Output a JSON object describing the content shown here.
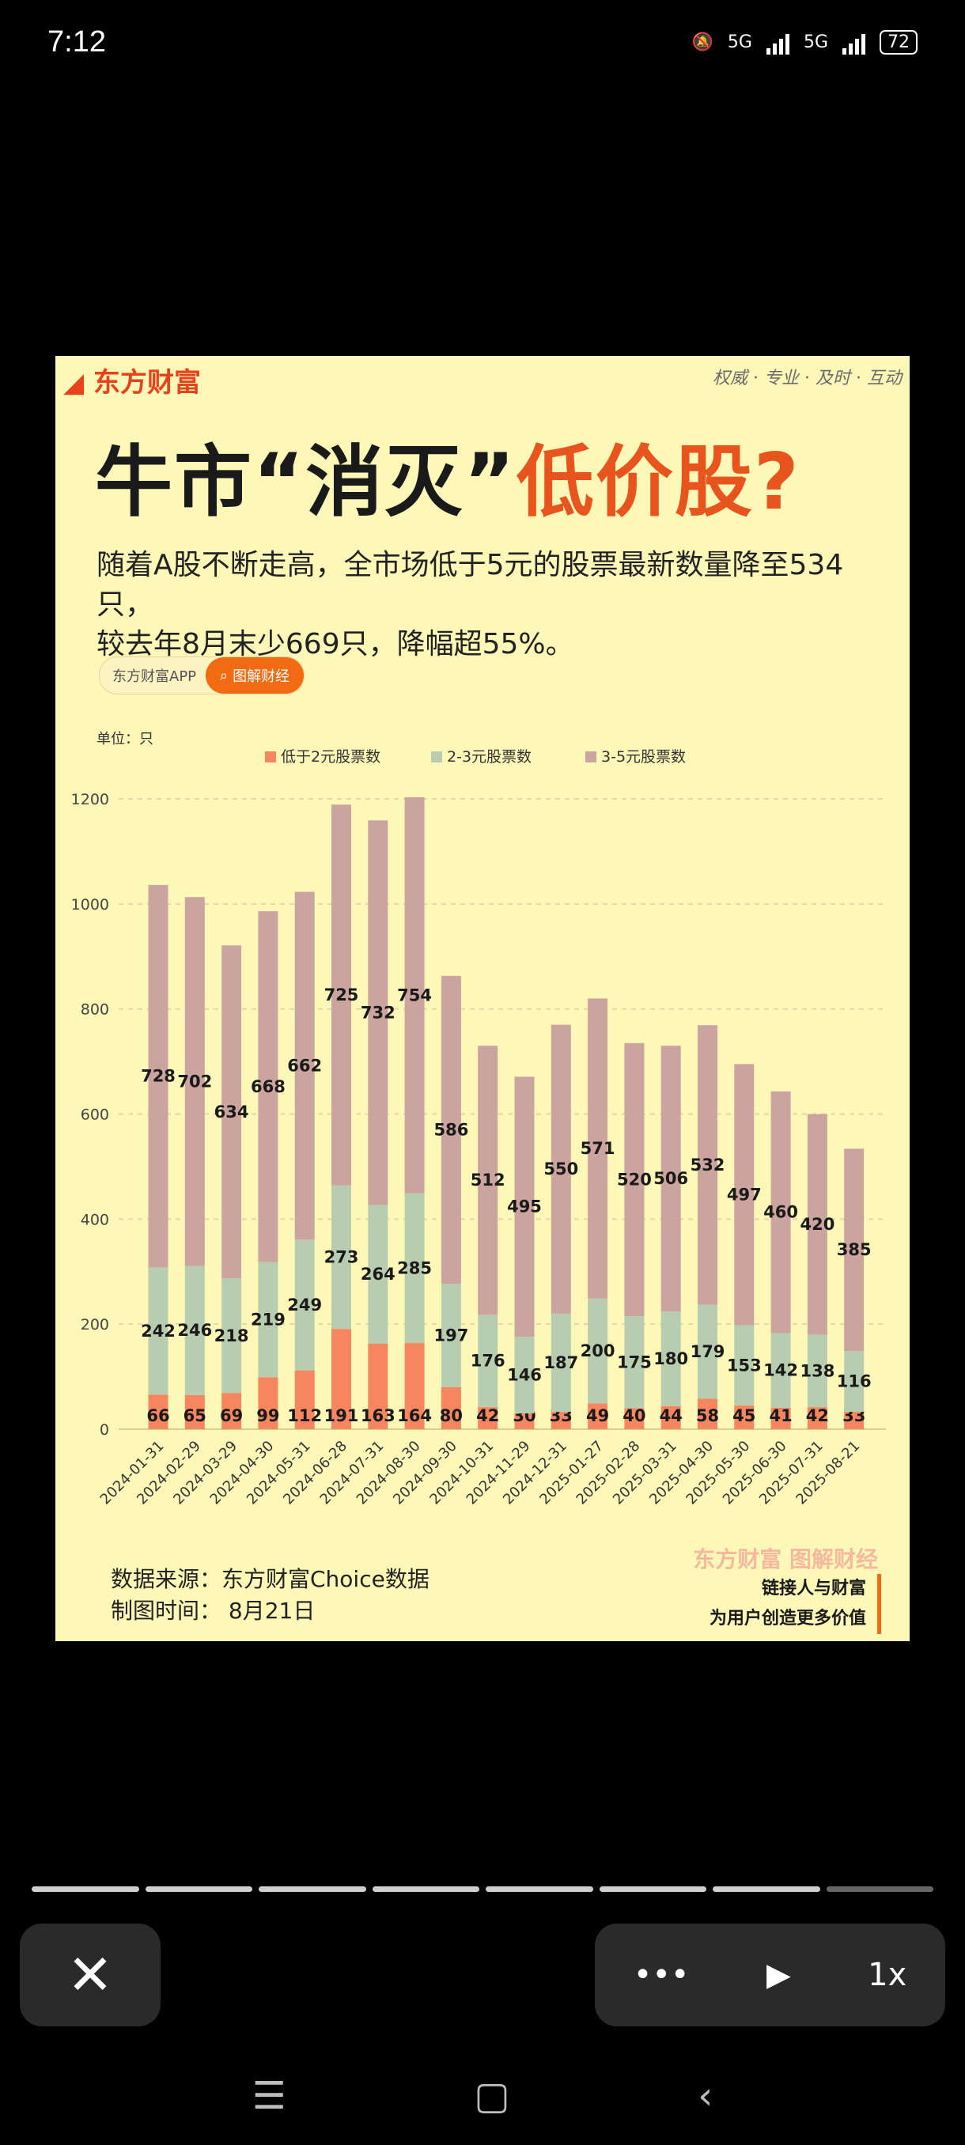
{
  "status_bar": {
    "time": "7:12",
    "net1": "5G",
    "net2": "5G",
    "battery": "72"
  },
  "card": {
    "brand": "东方财富",
    "tagline": "权威 · 专业 · 及时 · 互动",
    "title_main": "牛市“消灭”",
    "title_highlight": "低价股?",
    "subtitle_line1": "随着A股不断走高，全市场低于5元的股票最新数量降至534只，",
    "subtitle_line2": "较去年8月末少669只，降幅超55%。",
    "pill_left": "东方财富APP",
    "pill_right": "图解财经",
    "source_label": "数据来源：东方财富Choice数据",
    "date_label": "制图时间：  8月21日",
    "watermark": "东方财富 图解财经",
    "slogan_line1": "链接人与财富",
    "slogan_line2": "为用户创造更多价值"
  },
  "colors": {
    "low": "#f5865f",
    "mid": "#b8ccb0",
    "high": "#cba4a0",
    "bg": "#fdf8b8",
    "accent": "#e8541d"
  },
  "chart_data": {
    "type": "bar",
    "stacked": true,
    "unit_label": "单位：只",
    "categories": [
      "2024-01-31",
      "2024-02-29",
      "2024-03-29",
      "2024-04-30",
      "2024-05-31",
      "2024-06-28",
      "2024-07-31",
      "2024-08-30",
      "2024-09-30",
      "2024-10-31",
      "2024-11-29",
      "2024-12-31",
      "2025-01-27",
      "2025-02-28",
      "2025-03-31",
      "2025-04-30",
      "2025-05-30",
      "2025-06-30",
      "2025-07-31",
      "2025-08-21"
    ],
    "series": [
      {
        "name": "低于2元股票数",
        "values": [
          66,
          65,
          69,
          99,
          112,
          191,
          163,
          164,
          80,
          42,
          30,
          33,
          49,
          40,
          44,
          58,
          45,
          41,
          42,
          33
        ]
      },
      {
        "name": "2-3元股票数",
        "values": [
          242,
          246,
          218,
          219,
          249,
          273,
          264,
          285,
          197,
          176,
          146,
          187,
          200,
          175,
          180,
          179,
          153,
          142,
          138,
          116
        ]
      },
      {
        "name": "3-5元股票数",
        "values": [
          728,
          702,
          634,
          668,
          662,
          725,
          732,
          754,
          586,
          512,
          495,
          550,
          571,
          520,
          506,
          532,
          497,
          460,
          420,
          385
        ]
      }
    ],
    "y_ticks": [
      0,
      200,
      400,
      600,
      800,
      1000,
      1200
    ],
    "ylim": [
      0,
      1200
    ],
    "legend_position": "top"
  },
  "player": {
    "close_icon": "✕",
    "more_icon": "•••",
    "speed": "1x"
  }
}
